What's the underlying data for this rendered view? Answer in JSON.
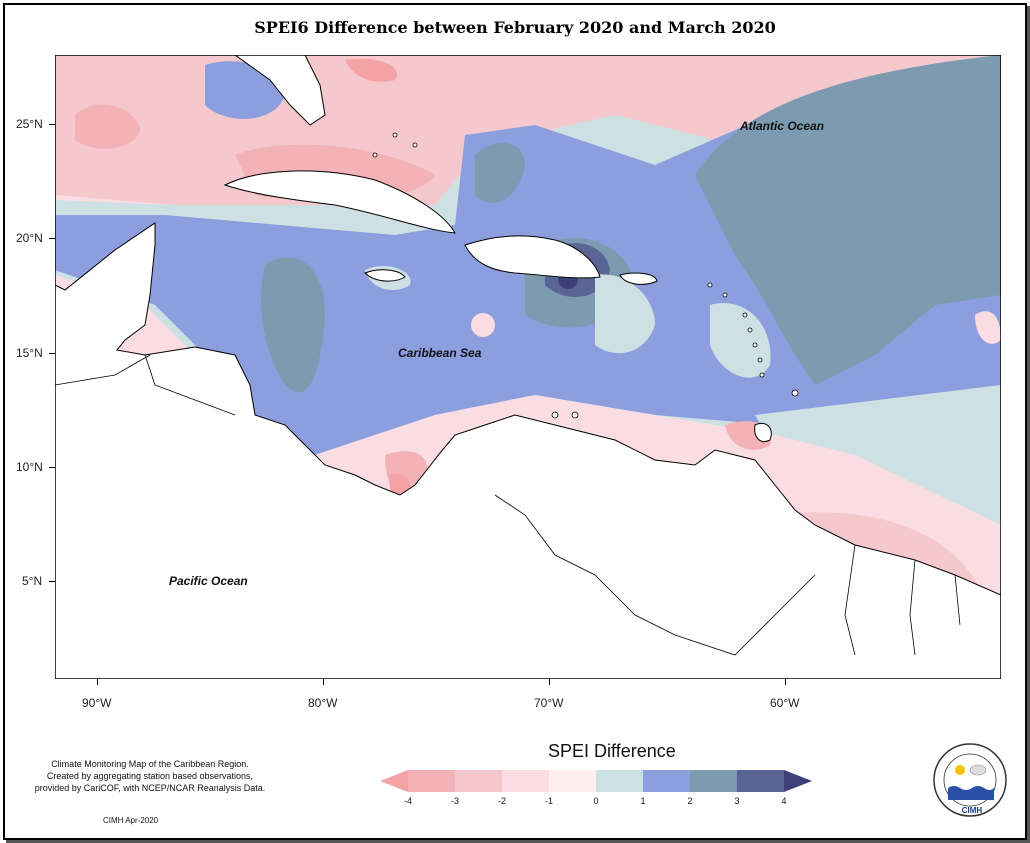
{
  "title": "SPEI6 Difference between February 2020 and March 2020",
  "map": {
    "ocean_labels": {
      "atlantic": "Atlantic Ocean",
      "caribbean": "Caribbean Sea",
      "pacific": "Pacific Ocean"
    },
    "lat_ticks": [
      "25°N",
      "20°N",
      "15°N",
      "10°N",
      "5°N"
    ],
    "lon_ticks": [
      "90°W",
      "80°W",
      "70°W",
      "60°W"
    ]
  },
  "legend": {
    "title": "SPEI Difference",
    "labels": [
      "-4",
      "-3",
      "-2",
      "-1",
      "0",
      "1",
      "2",
      "3",
      "4"
    ],
    "colors": [
      "#f4a3a5",
      "#f2b2b6",
      "#f4c8cd",
      "#fadde3",
      "#fcefef",
      "#cde0e4",
      "#8c9ede",
      "#7c9bb1",
      "#5a6596",
      "#3d3f7a"
    ]
  },
  "notes": {
    "line1": "Climate Monitoring Map of the Caribbean Region.",
    "line2": "Created by aggregating station based observations,",
    "line3": "provided by CariCOF, with NCEP/NCAR Reanalysis Data.",
    "credit": "CIMH Apr-2020"
  },
  "logo": {
    "text": "CIMH"
  }
}
